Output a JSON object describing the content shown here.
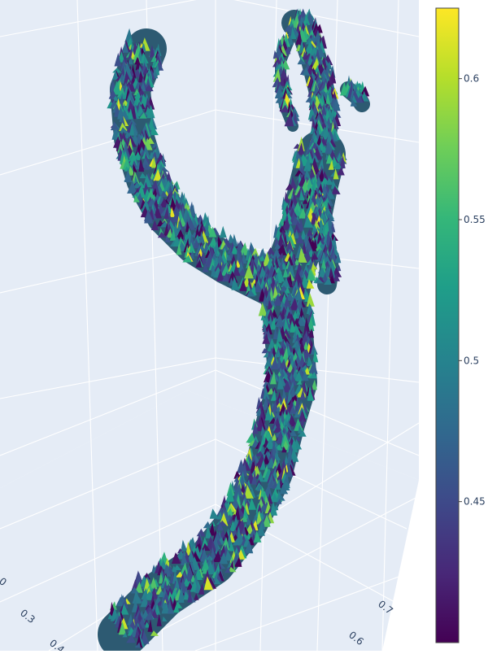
{
  "chart_data": {
    "type": "scatter3d",
    "title": "",
    "xlabel": "",
    "ylabel": "",
    "zlabel": "",
    "background_color": "#e5ecf6",
    "grid": true,
    "colorscale": "viridis",
    "colorbar": {
      "range": [
        0.4,
        0.625
      ],
      "ticks": [
        0.45,
        0.5,
        0.55,
        0.6
      ],
      "tick_labels": [
        "0.45",
        "0.5",
        "0.55",
        "0.6"
      ],
      "placement": "right"
    },
    "axis_left": {
      "tick_labels": [
        "0",
        "0.3",
        "0.4"
      ]
    },
    "axis_right": {
      "tick_labels": [
        "0.7",
        "0.6"
      ]
    },
    "marker_color_stats": {
      "min": 0.4,
      "max": 0.625,
      "typical_range": [
        0.45,
        0.58
      ]
    }
  }
}
